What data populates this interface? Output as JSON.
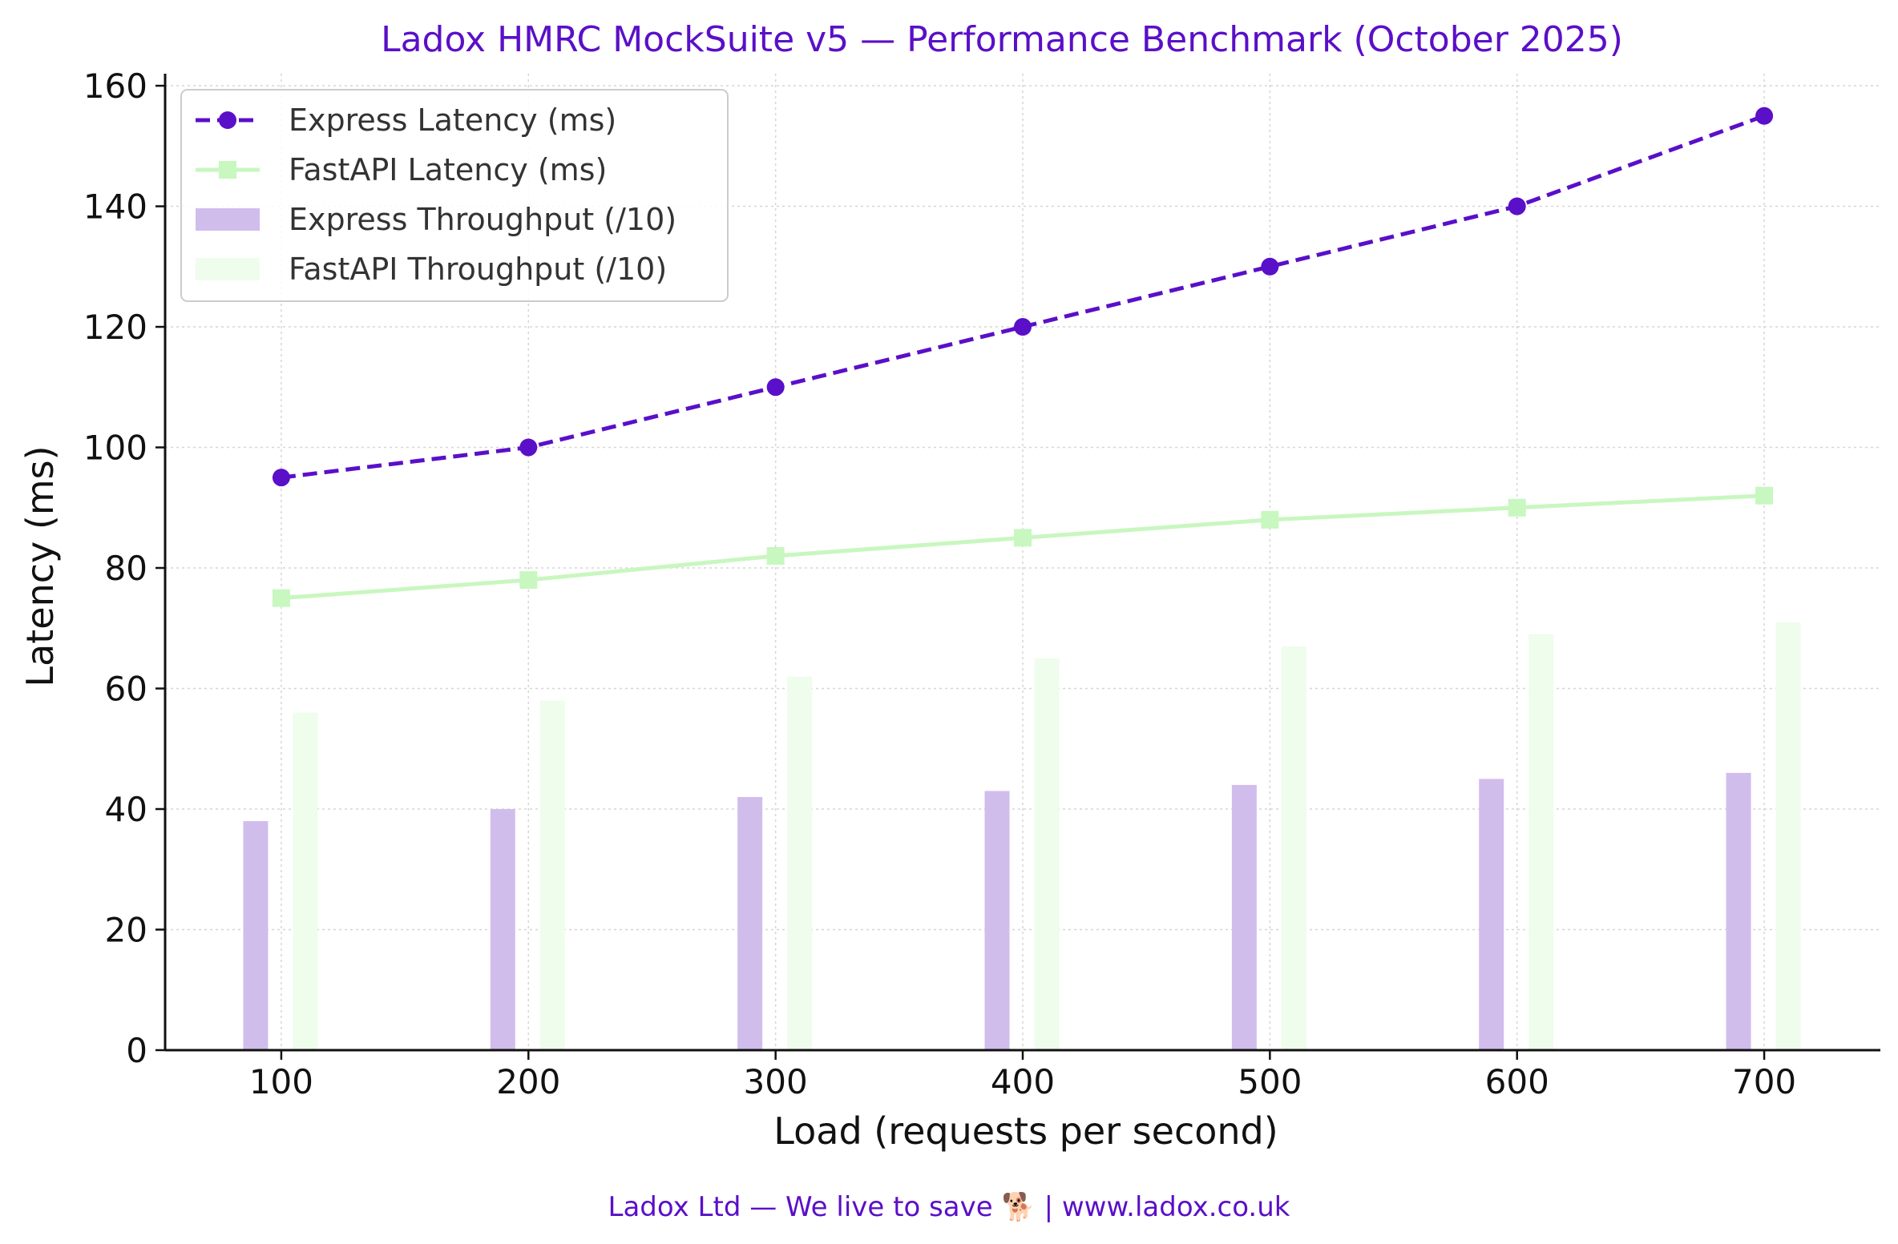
{
  "chart_data": {
    "type": "bar",
    "title": "Ladox HMRC MockSuite v5 — Performance Benchmark (October 2025)",
    "xlabel": "Load (requests per second)",
    "ylabel": "Latency (ms)",
    "x": [
      100,
      200,
      300,
      400,
      500,
      600,
      700
    ],
    "x_tick_labels": [
      "100",
      "200",
      "300",
      "400",
      "500",
      "600",
      "700"
    ],
    "xlim": [
      53,
      747
    ],
    "ylim": [
      0,
      162
    ],
    "y_ticks": [
      0,
      20,
      40,
      60,
      80,
      100,
      120,
      140,
      160
    ],
    "y_tick_labels": [
      "0",
      "20",
      "40",
      "60",
      "80",
      "100",
      "120",
      "140",
      "160"
    ],
    "grid": true,
    "legend_position": "top-left",
    "series": [
      {
        "name": "Express Latency (ms)",
        "type": "line",
        "style": "dashed",
        "marker": "circle",
        "color": "#5a0fc8",
        "values": [
          95,
          100,
          110,
          120,
          130,
          140,
          155
        ]
      },
      {
        "name": "FastAPI Latency (ms)",
        "type": "line",
        "style": "solid",
        "marker": "square",
        "color": "#c8f7c0",
        "values": [
          75,
          78,
          82,
          85,
          88,
          90,
          92
        ]
      },
      {
        "name": "Express Throughput (/10)",
        "type": "bar",
        "color": "#d1bdec",
        "values": [
          38,
          40,
          42,
          43,
          44,
          45,
          46
        ]
      },
      {
        "name": "FastAPI Throughput (/10)",
        "type": "bar",
        "color": "#effdec",
        "values": [
          56,
          58,
          62,
          65,
          67,
          69,
          71
        ]
      }
    ]
  },
  "colors": {
    "brand": "#5a0fc8",
    "axis": "#111111",
    "grid": "#d6d6d6"
  },
  "footer": {
    "text": "Ladox Ltd — We live to save 🐕 | www.ladox.co.uk"
  }
}
